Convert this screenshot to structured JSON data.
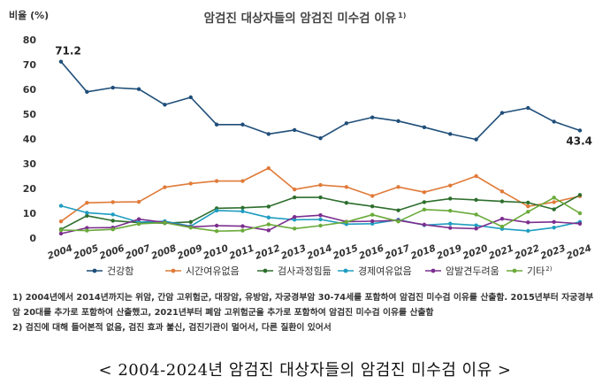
{
  "chart_data": {
    "type": "line",
    "title": "암검진 대상자들의 암검진 미수검 이유",
    "title_sup": "1)",
    "ylabel": "비율 (%)",
    "ylim": [
      0,
      80
    ],
    "yticks": [
      0,
      10,
      20,
      30,
      40,
      50,
      60,
      70,
      80
    ],
    "grid": false,
    "legend": "bottom",
    "x": [
      "2004",
      "2005",
      "2006",
      "2007",
      "2008",
      "2009",
      "2010",
      "2011",
      "2012",
      "2013",
      "2014",
      "2015",
      "2016",
      "2017",
      "2018",
      "2019",
      "2020",
      "2021",
      "2022",
      "2023",
      "2024"
    ],
    "series": [
      {
        "name": "건강함",
        "color": "#1f4e79",
        "values": [
          71.2,
          59,
          60.7,
          60.1,
          53.8,
          56.8,
          45.8,
          45.8,
          42,
          43.6,
          40.3,
          46.3,
          48.7,
          47.2,
          44.7,
          42,
          39.8,
          50.5,
          52.5,
          47,
          43.4
        ]
      },
      {
        "name": "시간여유없음",
        "color": "#e07b39",
        "values": [
          6.7,
          14.2,
          14.5,
          14.6,
          20.5,
          22,
          23,
          23,
          28.2,
          19.6,
          21.4,
          20.6,
          17,
          20.6,
          18.5,
          21.2,
          25,
          18.8,
          12.8,
          14.5,
          16.9
        ]
      },
      {
        "name": "검사과정힘듦",
        "color": "#2d6e2d",
        "values": [
          3.5,
          9,
          7,
          6.2,
          6,
          6.5,
          12,
          12.2,
          12.7,
          16.4,
          16.4,
          14.2,
          12.8,
          11.2,
          14.5,
          15.9,
          15.4,
          14.8,
          14.3,
          11.6,
          17.4
        ]
      },
      {
        "name": "경제여유없음",
        "color": "#1f9dc0",
        "values": [
          13,
          10.2,
          9.5,
          6.4,
          6.8,
          4.8,
          11.1,
          10.8,
          8.3,
          7.4,
          7.5,
          5.6,
          5.8,
          7.4,
          5.2,
          5.8,
          5.1,
          3.7,
          2.9,
          4.2,
          6.5
        ]
      },
      {
        "name": "암발견두려움",
        "color": "#7b2e8e",
        "values": [
          1.8,
          4.1,
          4.2,
          7.6,
          6.3,
          4.5,
          5,
          4.8,
          3.1,
          8.5,
          9.2,
          6.6,
          6.8,
          7.1,
          5.4,
          4.1,
          3.8,
          7.8,
          6.3,
          6.5,
          5.8
        ]
      },
      {
        "name": "기타",
        "name_sup": "2)",
        "color": "#6aaa3a",
        "values": [
          3.2,
          3,
          3.5,
          5.7,
          6.2,
          4.2,
          2.8,
          3,
          5.5,
          3.8,
          5,
          6.5,
          9.4,
          6.7,
          11.5,
          11,
          9.5,
          4.6,
          10.6,
          16.3,
          10
        ]
      }
    ],
    "annotations": [
      {
        "series": 0,
        "index": 0,
        "text": "71.2",
        "position": "above"
      },
      {
        "series": 0,
        "index": 20,
        "text": "43.4",
        "position": "below"
      }
    ]
  },
  "notes": [
    "1) 2004년에서 2014년까지는 위암, 간암 고위험군, 대장암, 유방암, 자궁경부암 30-74세를 포함하여 암검진 미수검 이유를 산출함. 2015년부터 자궁경부암 20대를 추가로 포함하여 산출했고, 2021년부터 폐암 고위험군을 추가로 포함하여 암검진 미수검 이유를 산출함",
    "2) 검진에 대해 들어본적 없음, 검진 효과 불신, 검진기관이 멀어서, 다른 질환이 있어서"
  ],
  "caption": "< 2004-2024년 암검진 대상자들의 암검진 미수검 이유 >"
}
